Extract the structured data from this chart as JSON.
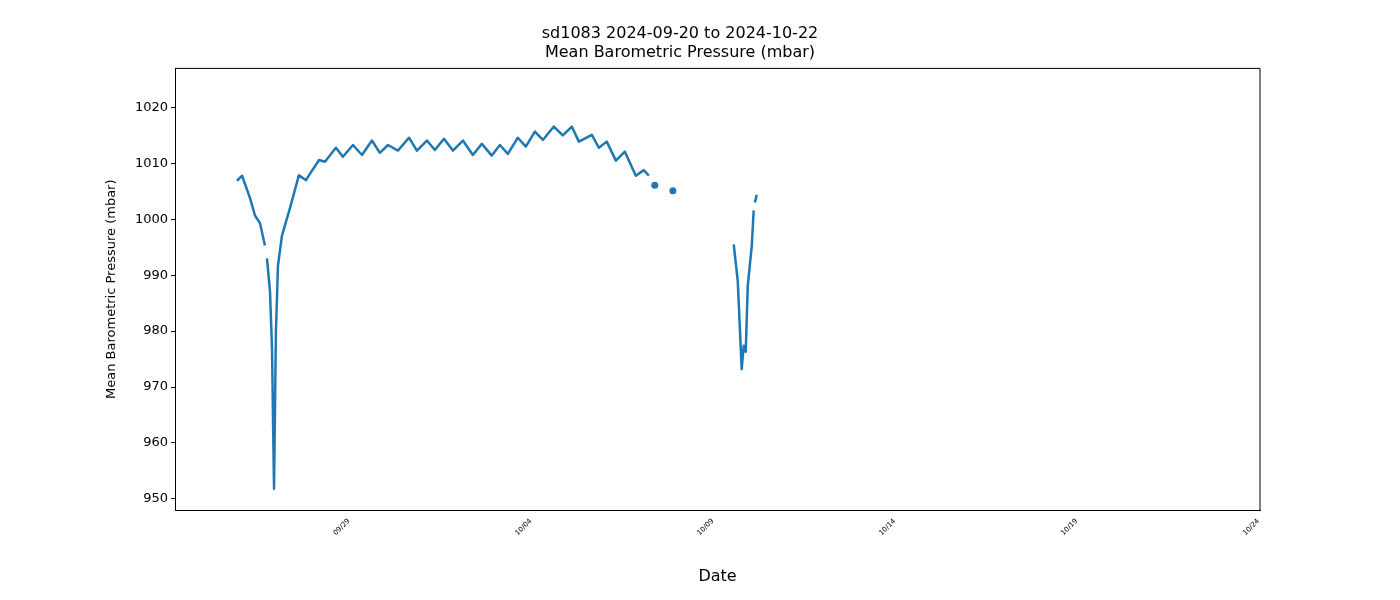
{
  "chart_data": {
    "type": "line",
    "title": "sd1083 2024-09-20 to 2024-10-22",
    "subtitle": "Mean Barometric Pressure (mbar)",
    "xlabel": "Date",
    "ylabel": "Mean Barometric Pressure (mbar)",
    "xlim": [
      "2024-09-24T05:15",
      "2024-10-24T01:00"
    ],
    "xticks": [
      {
        "value": "2024-09-29",
        "label": "09/29"
      },
      {
        "value": "2024-10-04",
        "label": "10/04"
      },
      {
        "value": "2024-10-09",
        "label": "10/09"
      },
      {
        "value": "2024-10-14",
        "label": "10/14"
      },
      {
        "value": "2024-10-19",
        "label": "10/19"
      },
      {
        "value": "2024-10-24",
        "label": "10/24"
      }
    ],
    "ylim": [
      948,
      1027
    ],
    "yticks": [
      950,
      960,
      970,
      980,
      990,
      1000,
      1010,
      1020
    ],
    "grid": false,
    "legend": false,
    "line_style": "solid",
    "series": [
      {
        "color": "#1f77b4",
        "x": [
          "2024-09-25T22:10",
          "2024-09-26T01:30",
          "2024-09-26T06:45",
          "2024-09-26T10:00",
          "2024-09-26T13:20",
          "2024-09-26T16:35",
          "2024-09-26T17:15",
          "2024-09-26T17:55",
          "2024-09-26T19:55",
          "2024-09-26T21:15",
          "2024-09-26T22:35",
          "2024-09-26T23:50",
          "2024-09-27T01:10",
          "2024-09-27T03:50",
          "2024-09-27T09:05",
          "2024-09-27T15:00",
          "2024-09-27T19:40",
          "2024-09-27T23:35",
          "2024-09-28T04:15",
          "2024-09-28T08:10",
          "2024-09-28T15:25",
          "2024-09-28T20:00",
          "2024-09-29T02:40",
          "2024-09-29T08:35",
          "2024-09-29T15:10",
          "2024-09-29T20:25",
          "2024-09-30T01:45",
          "2024-09-30T08:20",
          "2024-09-30T15:35",
          "2024-09-30T20:50",
          "2024-10-01T03:25",
          "2024-10-01T08:40",
          "2024-10-01T14:40",
          "2024-10-01T20:35",
          "2024-10-02T03:10",
          "2024-10-02T09:45",
          "2024-10-02T15:40",
          "2024-10-02T22:15",
          "2024-10-03T03:35",
          "2024-10-03T08:50",
          "2024-10-03T15:25",
          "2024-10-03T20:40",
          "2024-10-04T02:40",
          "2024-10-04T07:55",
          "2024-10-04T15:10",
          "2024-10-04T21:05",
          "2024-10-05T03:00",
          "2024-10-05T07:40",
          "2024-10-05T16:15",
          "2024-10-05T20:50",
          "2024-10-06T02:05",
          "2024-10-06T08:05",
          "2024-10-06T14:00",
          "2024-10-06T21:15",
          "2024-10-07T02:30",
          "2024-10-07T05:50",
          "2024-10-08T12:00",
          "2024-10-09T13:50",
          "2024-10-09T16:30",
          "2024-10-09T19:05",
          "2024-10-09T20:25",
          "2024-10-09T21:45",
          "2024-10-09T23:05",
          "2024-10-10T01:45",
          "2024-10-10T03:00",
          "2024-10-10T03:20",
          "2024-10-10T03:50",
          "2024-10-10T05:00"
        ],
        "values": [
          1006.9,
          1007.8,
          1003.8,
          1000.7,
          999.3,
          995.3,
          null,
          993.0,
          987.1,
          976.8,
          951.8,
          979.9,
          991.7,
          997.1,
          1002.0,
          1007.9,
          1007.0,
          1008.7,
          1010.6,
          1010.3,
          1012.8,
          1011.2,
          1013.3,
          1011.5,
          1014.1,
          1011.9,
          1013.3,
          1012.3,
          1014.6,
          1012.3,
          1014.1,
          1012.4,
          1014.4,
          1012.3,
          1014.1,
          1011.5,
          1013.5,
          1011.4,
          1013.3,
          1011.7,
          1014.6,
          1013.0,
          1015.7,
          1014.2,
          1016.6,
          1015.0,
          1016.6,
          1013.9,
          1015.1,
          1012.8,
          1013.9,
          1010.5,
          1012.1,
          1007.8,
          1008.8,
          1007.8,
          null,
          995.5,
          988.9,
          973.2,
          977.4,
          976.3,
          988.1,
          995.3,
          1001.6,
          null,
          1003.0,
          1004.4
        ]
      },
      {
        "type": "scatter",
        "marker": "circle",
        "color": "#1f77b4",
        "x": [
          "2024-10-07T09:45",
          "2024-10-07T21:40"
        ],
        "values": [
          1006.1,
          1005.1
        ]
      }
    ]
  }
}
